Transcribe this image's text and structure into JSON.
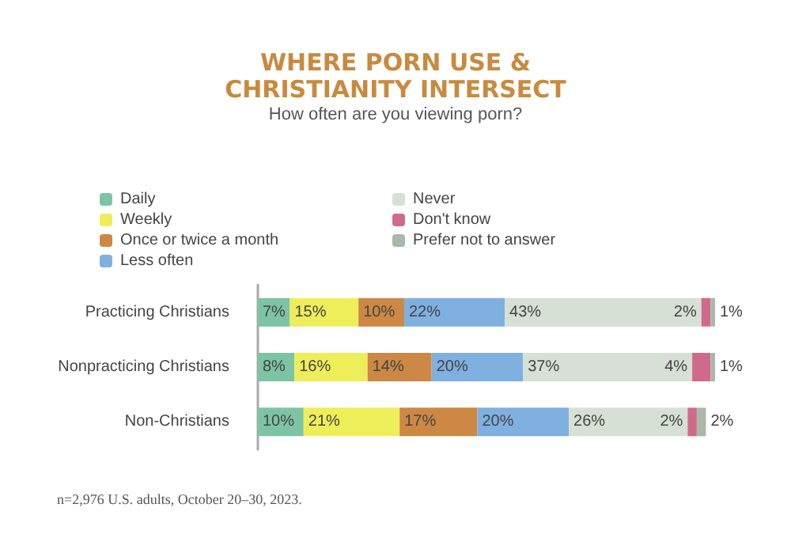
{
  "chart_data": {
    "type": "bar",
    "orientation": "horizontal",
    "stacked": true,
    "title": "WHERE PORN USE &\nCHRISTIANITY INTERSECT",
    "subtitle": "How often are you viewing porn?",
    "categories": [
      "Practicing Christians",
      "Nonpracticing Christians",
      "Non-Christians"
    ],
    "legend": "top",
    "tick_labels": "y",
    "series": [
      {
        "name": "Daily",
        "color": "#7dc4a4",
        "values": [
          7,
          8,
          10
        ],
        "value_labels": [
          "7%",
          "8%",
          "10%"
        ]
      },
      {
        "name": "Weekly",
        "color": "#eeee5a",
        "values": [
          15,
          16,
          21
        ],
        "value_labels": [
          "15%",
          "16%",
          "21%"
        ]
      },
      {
        "name": "Once or twice a month",
        "color": "#cc8844",
        "values": [
          10,
          14,
          17
        ],
        "value_labels": [
          "10%",
          "14%",
          "17%"
        ]
      },
      {
        "name": "Less often",
        "color": "#7fb0e0",
        "values": [
          22,
          20,
          20
        ],
        "value_labels": [
          "22%",
          "20%",
          "20%"
        ]
      },
      {
        "name": "Never",
        "color": "#d6e0d4",
        "values": [
          43,
          37,
          26
        ],
        "value_labels": [
          "43%",
          "37%",
          "26%"
        ]
      },
      {
        "name": "Don't know",
        "color": "#d06a8c",
        "values": [
          2,
          4,
          2
        ],
        "value_labels": [
          "2%",
          "4%",
          "2%"
        ]
      },
      {
        "name": "Prefer not to answer",
        "color": "#aab8aa",
        "values": [
          1,
          1,
          2
        ],
        "value_labels": [
          "1%",
          "1%",
          "2%"
        ]
      }
    ],
    "annotations": [
      "n=2,976 U.S. adults, October 20–30, 2023."
    ]
  }
}
